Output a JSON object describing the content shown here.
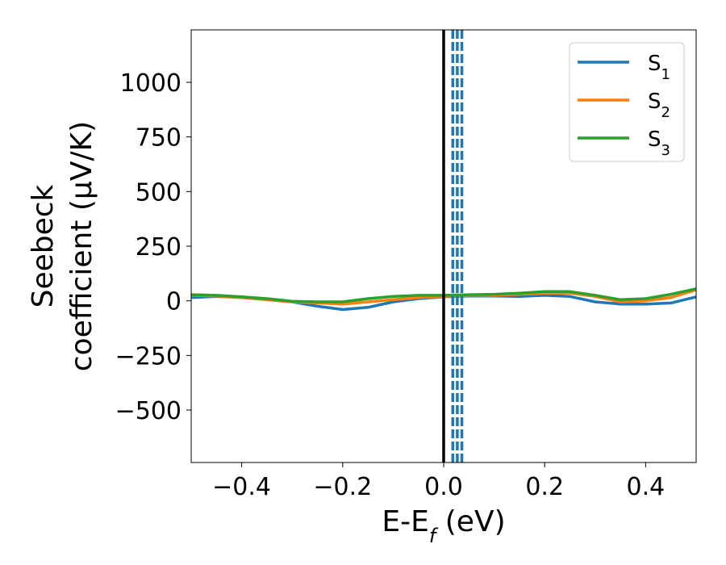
{
  "chart_data": {
    "type": "line",
    "xlabel": {
      "main": "E-E",
      "sub": "f",
      "unit": " (eV)"
    },
    "ylabel": {
      "line1": "Seebeck",
      "line2": "coefficient  (μV/K)"
    },
    "xlim": [
      -0.5,
      0.5
    ],
    "ylim": [
      -740,
      1240
    ],
    "xticks": [
      -0.4,
      -0.2,
      0.0,
      0.2,
      0.4
    ],
    "xtick_labels": [
      "−0.4",
      "−0.2",
      "0.0",
      "0.2",
      "0.4"
    ],
    "yticks": [
      -500,
      -250,
      0,
      250,
      500,
      750,
      1000
    ],
    "ytick_labels": [
      "−500",
      "−250",
      "0",
      "250",
      "500",
      "750",
      "1000"
    ],
    "grid": false,
    "legend_position": "top-right",
    "fermi_line": {
      "x": 0.0,
      "color": "#000000"
    },
    "dashed_lines": {
      "x": [
        0.018,
        0.027,
        0.036
      ],
      "color": "#1f77b4"
    },
    "series": [
      {
        "name": "S",
        "sub": "1",
        "color": "#1f77b4",
        "x": [
          -0.5,
          -0.45,
          -0.4,
          -0.35,
          -0.3,
          -0.25,
          -0.2,
          -0.15,
          -0.1,
          -0.05,
          0.0,
          0.05,
          0.1,
          0.15,
          0.2,
          0.25,
          0.3,
          0.35,
          0.4,
          0.45,
          0.5
        ],
        "y": [
          15,
          20,
          15,
          5,
          -5,
          -25,
          -40,
          -30,
          -5,
          10,
          18,
          22,
          22,
          20,
          25,
          20,
          -5,
          -15,
          -15,
          -10,
          18
        ]
      },
      {
        "name": "S",
        "sub": "2",
        "color": "#ff7f0e",
        "x": [
          -0.5,
          -0.45,
          -0.4,
          -0.35,
          -0.3,
          -0.25,
          -0.2,
          -0.15,
          -0.1,
          -0.05,
          0.0,
          0.05,
          0.1,
          0.15,
          0.2,
          0.25,
          0.3,
          0.35,
          0.4,
          0.45,
          0.5
        ],
        "y": [
          25,
          22,
          15,
          5,
          -5,
          -10,
          -15,
          -5,
          5,
          15,
          20,
          25,
          25,
          30,
          35,
          35,
          20,
          -5,
          0,
          15,
          50
        ]
      },
      {
        "name": "S",
        "sub": "3",
        "color": "#2ca02c",
        "x": [
          -0.5,
          -0.45,
          -0.4,
          -0.35,
          -0.3,
          -0.25,
          -0.2,
          -0.15,
          -0.1,
          -0.05,
          0.0,
          0.05,
          0.1,
          0.15,
          0.2,
          0.25,
          0.3,
          0.35,
          0.4,
          0.45,
          0.5
        ],
        "y": [
          28,
          25,
          18,
          10,
          -2,
          -5,
          -5,
          10,
          20,
          25,
          25,
          28,
          30,
          35,
          42,
          42,
          25,
          5,
          10,
          30,
          55
        ]
      }
    ]
  }
}
